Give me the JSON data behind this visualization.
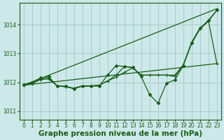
{
  "background_color": "#cce8e8",
  "grid_color": "#aacccc",
  "line_color": "#1a5c1a",
  "marker_color": "#1a5c1a",
  "xlabel": "Graphe pression niveau de la mer (hPa)",
  "xlabel_fontsize": 7.5,
  "ylim": [
    1010.7,
    1014.75
  ],
  "xlim": [
    -0.5,
    23.5
  ],
  "yticks": [
    1011,
    1012,
    1013,
    1014
  ],
  "xticks": [
    0,
    1,
    2,
    3,
    4,
    5,
    6,
    7,
    8,
    9,
    10,
    11,
    12,
    13,
    14,
    15,
    16,
    17,
    18,
    19,
    20,
    21,
    22,
    23
  ],
  "straight_line": {
    "x": [
      0,
      23
    ],
    "y": [
      1011.9,
      1014.55
    ]
  },
  "smooth_line": {
    "x": [
      0,
      1,
      2,
      3,
      4,
      5,
      6,
      7,
      8,
      9,
      10,
      11,
      12,
      13,
      14,
      15,
      16,
      17,
      18,
      19,
      20,
      21,
      22,
      23
    ],
    "y": [
      1011.9,
      1011.95,
      1012.05,
      1012.1,
      1011.95,
      1011.95,
      1011.9,
      1011.95,
      1011.95,
      1012.0,
      1012.1,
      1012.2,
      1012.35,
      1012.45,
      1012.45,
      1012.45,
      1012.5,
      1012.6,
      1012.65,
      1012.7,
      1013.1,
      1013.5,
      1013.65,
      1012.65
    ]
  },
  "medium_line": {
    "x": [
      0,
      1,
      2,
      3,
      4,
      5,
      6,
      7,
      8,
      9,
      10,
      11,
      12,
      13,
      14,
      15,
      16,
      17,
      18,
      19,
      20,
      21,
      22,
      23
    ],
    "y": [
      1011.9,
      1011.97,
      1012.1,
      1012.12,
      1011.88,
      1011.85,
      1011.8,
      1011.88,
      1011.88,
      1011.9,
      1012.05,
      1012.25,
      1012.55,
      1012.5,
      1012.25,
      1012.25,
      1012.25,
      1012.25,
      1012.25,
      1012.6,
      1013.35,
      1013.85,
      1014.12,
      1014.5
    ]
  },
  "wiggly_line": {
    "x": [
      0,
      1,
      2,
      3,
      4,
      5,
      6,
      7,
      8,
      9,
      10,
      11,
      12,
      13,
      14,
      15,
      16,
      17,
      18,
      19,
      20,
      21,
      22,
      23
    ],
    "y": [
      1011.92,
      1012.0,
      1012.15,
      1012.2,
      1011.87,
      1011.87,
      1011.78,
      1011.87,
      1011.87,
      1011.87,
      1012.25,
      1012.58,
      1012.55,
      1012.52,
      1012.2,
      1011.57,
      1011.28,
      1011.97,
      1012.08,
      1012.58,
      1013.38,
      1013.88,
      1014.15,
      1014.5
    ]
  },
  "extra_line": {
    "x": [
      0,
      1,
      2,
      3,
      4,
      5,
      6,
      7,
      8,
      9,
      10,
      11,
      12,
      13,
      14,
      15,
      16,
      17,
      18,
      19,
      20,
      21,
      22,
      23
    ],
    "y": [
      1011.9,
      1011.95,
      1012.1,
      1012.15,
      1011.87,
      1011.85,
      1011.78,
      1011.87,
      1011.87,
      1011.9,
      1012.05,
      1012.18,
      1012.35,
      1012.5,
      1012.25,
      1012.25,
      1012.25,
      1012.25,
      1012.2,
      1012.6,
      1013.38,
      1013.88,
      1014.12,
      1012.65
    ]
  }
}
